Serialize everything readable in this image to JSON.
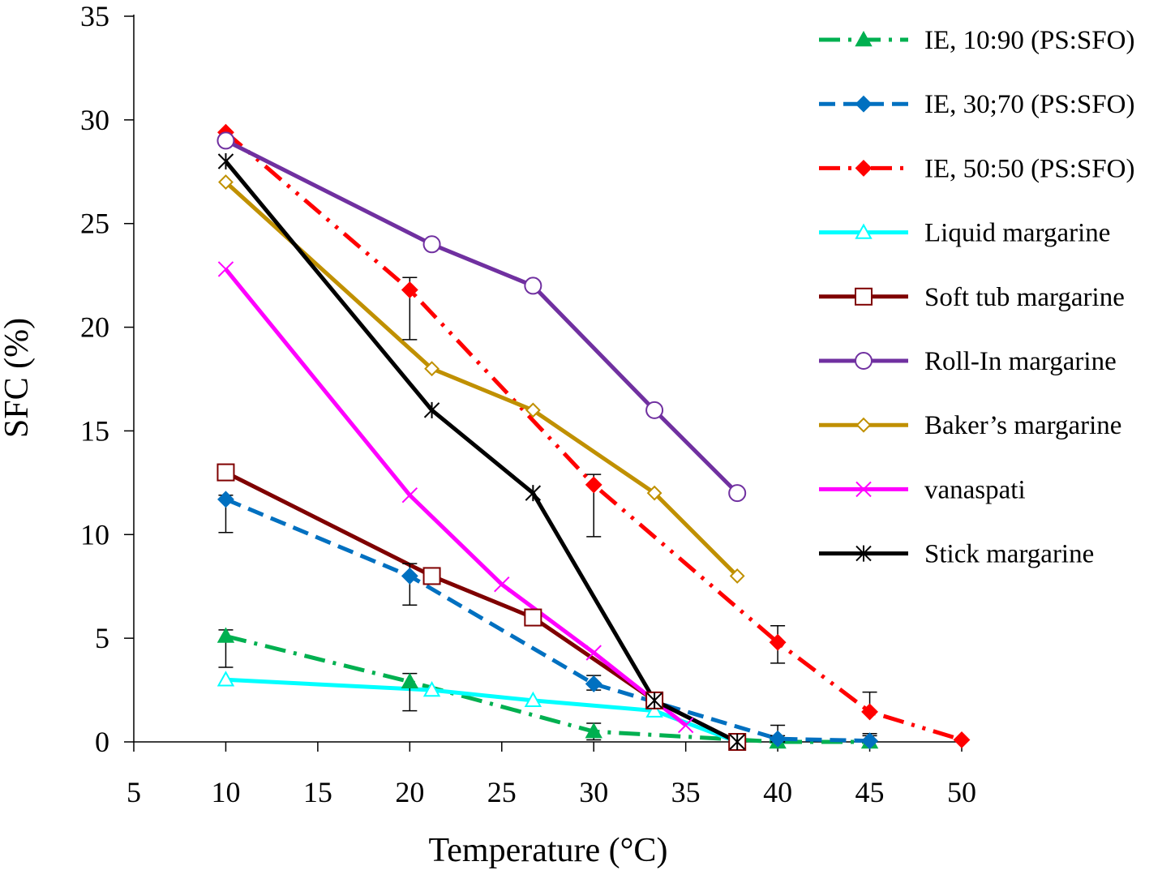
{
  "chart_data": {
    "type": "line",
    "title": "",
    "xlabel": "Temperature (°C)",
    "ylabel": "SFC (%)",
    "xlim": [
      5,
      50
    ],
    "ylim": [
      0,
      35
    ],
    "xticks": [
      5,
      10,
      15,
      20,
      25,
      30,
      35,
      40,
      45,
      50
    ],
    "yticks": [
      0,
      5,
      10,
      15,
      20,
      25,
      30,
      35
    ],
    "grid": false,
    "legend_position": "right",
    "series": [
      {
        "name": "IE, 10:90 (PS:SFO)",
        "color": "#00b050",
        "dash": "dash-dot",
        "marker": "triangle-filled",
        "points": [
          [
            10,
            5.1
          ],
          [
            20,
            2.9
          ],
          [
            30,
            0.5
          ],
          [
            40,
            0.0
          ],
          [
            45,
            0.0
          ]
        ],
        "error_up": [
          [
            10,
            5.4
          ],
          [
            20,
            3.3
          ],
          [
            30,
            0.9
          ],
          [
            40,
            0.3
          ],
          [
            45,
            0.3
          ]
        ],
        "error_down": [
          [
            10,
            3.6
          ],
          [
            20,
            1.5
          ],
          [
            30,
            0.1
          ],
          [
            40,
            0.0
          ],
          [
            45,
            0.0
          ]
        ]
      },
      {
        "name": "IE, 30;70 (PS:SFO)",
        "color": "#0070c0",
        "dash": "dash",
        "marker": "diamond-filled",
        "points": [
          [
            10,
            11.7
          ],
          [
            20,
            8.0
          ],
          [
            30,
            2.8
          ],
          [
            40,
            0.15
          ],
          [
            45,
            0.05
          ]
        ],
        "error_up": [
          [
            10,
            11.9
          ],
          [
            20,
            8.6
          ],
          [
            30,
            3.2
          ],
          [
            40,
            0.8
          ],
          [
            45,
            0.4
          ]
        ],
        "error_down": [
          [
            10,
            10.1
          ],
          [
            20,
            6.6
          ],
          [
            30,
            2.5
          ],
          [
            40,
            0.0
          ],
          [
            45,
            0.0
          ]
        ]
      },
      {
        "name": "IE, 50:50 (PS:SFO)",
        "color": "#ff0000",
        "dash": "dash-dot-dot",
        "marker": "diamond-filled",
        "points": [
          [
            10,
            29.4
          ],
          [
            20,
            21.8
          ],
          [
            30,
            12.4
          ],
          [
            40,
            4.8
          ],
          [
            45,
            1.45
          ],
          [
            50,
            0.1
          ]
        ],
        "error_up": [
          [
            20,
            22.4
          ],
          [
            30,
            12.9
          ],
          [
            40,
            5.6
          ],
          [
            45,
            2.4
          ]
        ],
        "error_down": [
          [
            20,
            19.4
          ],
          [
            30,
            9.9
          ],
          [
            40,
            3.8
          ],
          [
            45,
            1.45
          ]
        ]
      },
      {
        "name": "Liquid margarine",
        "color": "#00ffff",
        "dash": "solid",
        "marker": "triangle-open",
        "points": [
          [
            10,
            3.0
          ],
          [
            21.2,
            2.5
          ],
          [
            26.7,
            2.0
          ],
          [
            33.3,
            1.5
          ],
          [
            37.8,
            0.0
          ]
        ]
      },
      {
        "name": "Soft tub margarine",
        "color": "#7f0000",
        "dash": "solid",
        "marker": "square-open",
        "points": [
          [
            10,
            13.0
          ],
          [
            21.2,
            8.0
          ],
          [
            26.7,
            6.0
          ],
          [
            33.3,
            2.0
          ],
          [
            37.8,
            0.0
          ]
        ]
      },
      {
        "name": "Roll-In margarine",
        "color": "#7030a0",
        "dash": "solid",
        "marker": "circle-open",
        "points": [
          [
            10,
            29.0
          ],
          [
            21.2,
            24.0
          ],
          [
            26.7,
            22.0
          ],
          [
            33.3,
            16.0
          ],
          [
            37.8,
            12.0
          ]
        ]
      },
      {
        "name": "Baker’s margarine",
        "color": "#c09000",
        "dash": "solid",
        "marker": "diamond-open",
        "points": [
          [
            10,
            27.0
          ],
          [
            21.2,
            18.0
          ],
          [
            26.7,
            16.0
          ],
          [
            33.3,
            12.0
          ],
          [
            37.8,
            8.0
          ]
        ]
      },
      {
        "name": "vanaspati",
        "color": "#ff00ff",
        "dash": "solid",
        "marker": "x",
        "points": [
          [
            10,
            22.8
          ],
          [
            20,
            11.9
          ],
          [
            25,
            7.6
          ],
          [
            30,
            4.3
          ],
          [
            35,
            0.8
          ]
        ]
      },
      {
        "name": "Stick margarine",
        "color": "#000000",
        "dash": "solid",
        "marker": "star",
        "points": [
          [
            10,
            28.0
          ],
          [
            21.2,
            16.0
          ],
          [
            26.7,
            12.0
          ],
          [
            33.3,
            2.0
          ],
          [
            37.8,
            0.0
          ]
        ]
      }
    ]
  }
}
